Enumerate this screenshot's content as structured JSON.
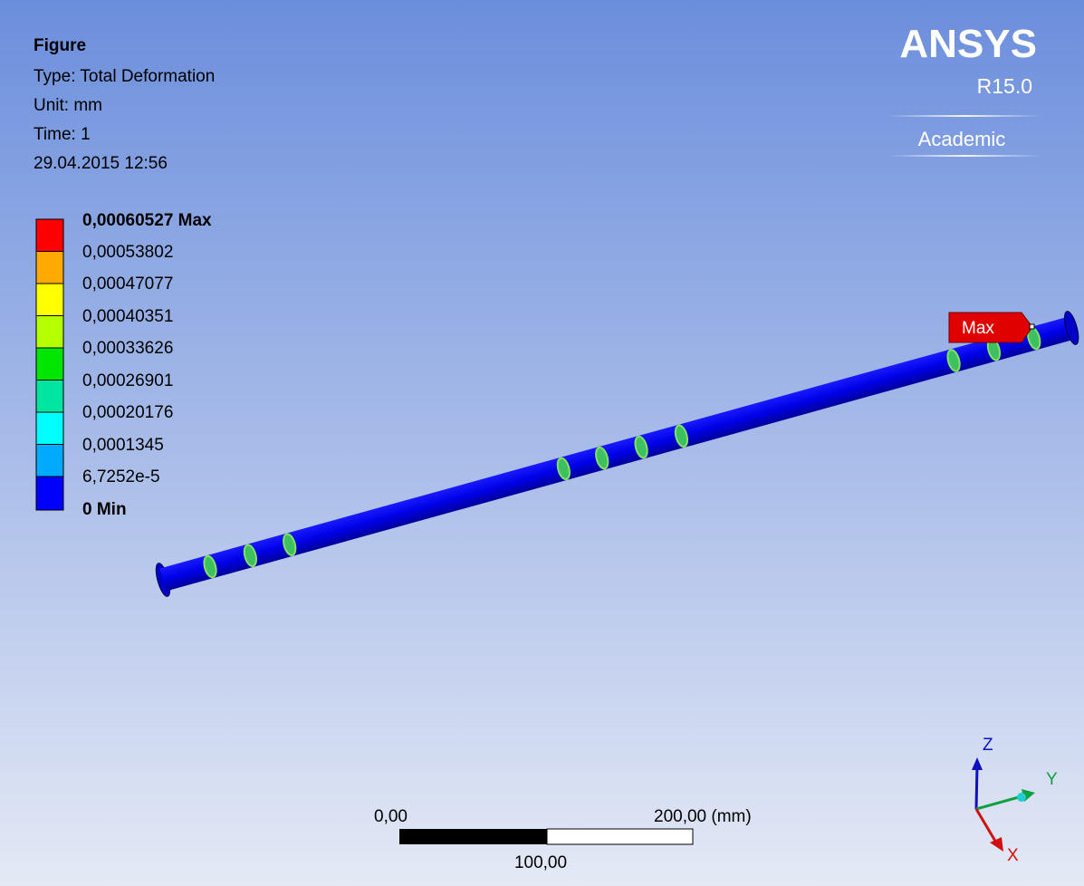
{
  "info": {
    "title": "Figure",
    "lines": [
      "Type: Total Deformation",
      "Unit: mm",
      "Time: 1",
      "29.04.2015 12:56"
    ]
  },
  "legend": {
    "labels": [
      "0,00060527 Max",
      "0,00053802",
      "0,00047077",
      "0,00040351",
      "0,00033626",
      "0,00026901",
      "0,00020176",
      "0,0001345",
      "6,7252e-5",
      "0 Min"
    ]
  },
  "logo": {
    "brand": "ANSYS",
    "version": "R15.0",
    "edition": "Academic"
  },
  "probe": "Max",
  "scale_bar": {
    "left": "0,00",
    "right": "200,00 (mm)",
    "middle": "100,00"
  },
  "triad": {
    "z": "Z",
    "y": "Y",
    "x": "X"
  }
}
